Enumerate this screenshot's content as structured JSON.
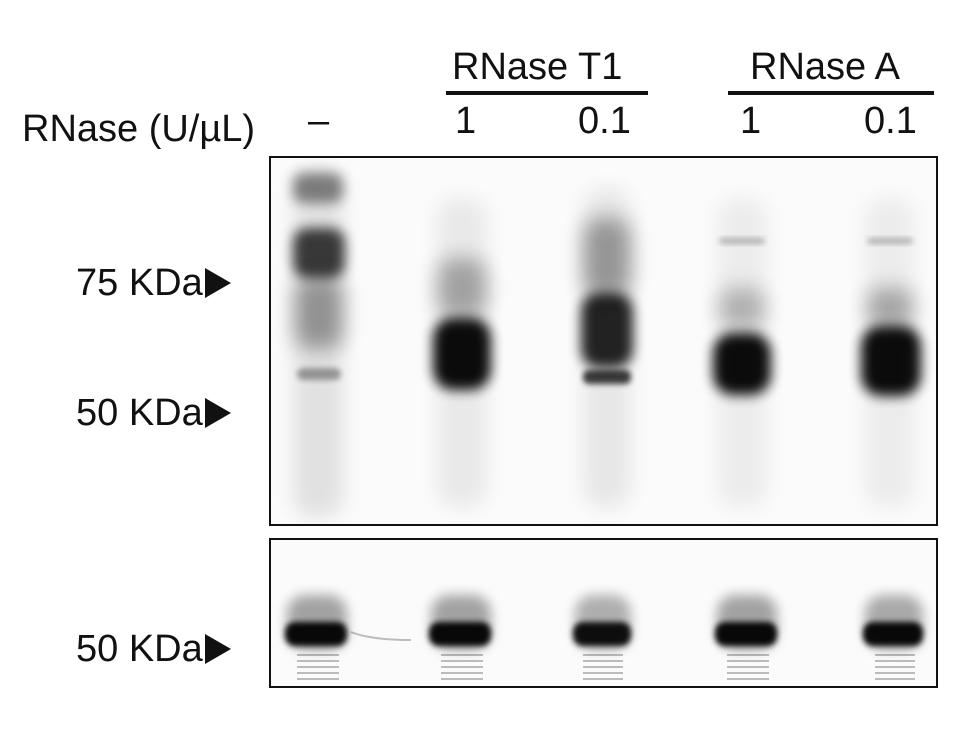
{
  "header": {
    "group_t1": "RNase T1",
    "group_a": "RNase A",
    "row_label": "RNase (U/µL)",
    "lanes": [
      "–",
      "1",
      "0.1",
      "1",
      "0.1"
    ]
  },
  "markers_top": [
    "75 KDa",
    "50 KDa"
  ],
  "markers_bottom": [
    "50 KDa"
  ],
  "colors": {
    "band": "#0a0a0a",
    "background": "#fbfbfb",
    "frame": "#111111"
  }
}
